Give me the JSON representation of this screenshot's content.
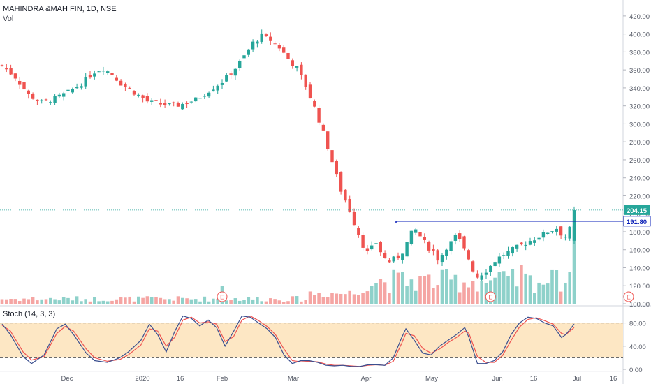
{
  "header": {
    "symbol": "MAHINDRA &MAH FIN, 1D, NSE",
    "volume_label": "Vol"
  },
  "stoch_label": "Stoch (14, 3, 3)",
  "earnings_marker": "E",
  "colors": {
    "up": "#26a69a",
    "down": "#ef5350",
    "up_vol": "#8ed1ca",
    "down_vol": "#f5a5a3",
    "level_line": "#0a1fb8",
    "last_price_line": "#26a69a",
    "k_line": "#3b4f8f",
    "d_line": "#ef5350",
    "band_fill": "#fde7c4",
    "axis_text": "#555a66"
  },
  "chart_data": {
    "type": "candlestick",
    "title": "MAHINDRA &MAH FIN, 1D, NSE",
    "price_axis": {
      "range": [
        100,
        430
      ],
      "ticks": [
        "420.00",
        "400.00",
        "380.00",
        "360.00",
        "340.00",
        "320.00",
        "300.00",
        "280.00",
        "260.00",
        "240.00",
        "220.00",
        "200.00",
        "180.00",
        "160.00",
        "140.00",
        "120.00",
        "100.00"
      ]
    },
    "x_axis_labels": [
      "Dec",
      "2020",
      "16",
      "Feb",
      "Mar",
      "Apr",
      "May",
      "Jun",
      "16",
      "Jul",
      "16"
    ],
    "last_price_label": "204.15",
    "level_label": "191.80",
    "level_value": 191.8,
    "close_path": [
      [
        0,
        365
      ],
      [
        3,
        352
      ],
      [
        6,
        332
      ],
      [
        9,
        324
      ],
      [
        12,
        328
      ],
      [
        15,
        335
      ],
      [
        18,
        345
      ],
      [
        21,
        358
      ],
      [
        23,
        362
      ],
      [
        25,
        355
      ],
      [
        27,
        345
      ],
      [
        30,
        335
      ],
      [
        33,
        325
      ],
      [
        36,
        322
      ],
      [
        39,
        320
      ],
      [
        41,
        322
      ],
      [
        44,
        327
      ],
      [
        47,
        337
      ],
      [
        50,
        347
      ],
      [
        53,
        362
      ],
      [
        55,
        375
      ],
      [
        57,
        390
      ],
      [
        59,
        398
      ],
      [
        61,
        393
      ],
      [
        63,
        385
      ],
      [
        65,
        372
      ],
      [
        67,
        362
      ],
      [
        69,
        342
      ],
      [
        71,
        318
      ],
      [
        73,
        290
      ],
      [
        75,
        258
      ],
      [
        77,
        226
      ],
      [
        79,
        204
      ],
      [
        80,
        190
      ],
      [
        81,
        178
      ],
      [
        82,
        165
      ],
      [
        83,
        157
      ],
      [
        84,
        162
      ],
      [
        85,
        168
      ],
      [
        86,
        158
      ],
      [
        87,
        150
      ],
      [
        88,
        147
      ],
      [
        90,
        152
      ],
      [
        91,
        158
      ],
      [
        92,
        168
      ],
      [
        93,
        178
      ],
      [
        94,
        182
      ],
      [
        95,
        175
      ],
      [
        96,
        168
      ],
      [
        97,
        162
      ],
      [
        98,
        158
      ],
      [
        99,
        150
      ],
      [
        100,
        155
      ],
      [
        101,
        163
      ],
      [
        102,
        168
      ],
      [
        103,
        175
      ],
      [
        104,
        170
      ],
      [
        105,
        160
      ],
      [
        106,
        150
      ],
      [
        107,
        138
      ],
      [
        108,
        130
      ],
      [
        110,
        137
      ],
      [
        111,
        142
      ],
      [
        112,
        148
      ],
      [
        114,
        155
      ],
      [
        116,
        160
      ],
      [
        118,
        165
      ],
      [
        120,
        170
      ],
      [
        122,
        175
      ],
      [
        124,
        180
      ],
      [
        126,
        184
      ],
      [
        127,
        178
      ],
      [
        128,
        175
      ],
      [
        129,
        183
      ],
      [
        130,
        204
      ]
    ],
    "earnings_days": [
      50,
      111
    ],
    "stoch": {
      "levels": [
        80,
        20
      ],
      "ticks": [
        "80.00",
        "40.00",
        "0.00"
      ],
      "k_path": [
        [
          0,
          78
        ],
        [
          2,
          60
        ],
        [
          5,
          22
        ],
        [
          7,
          10
        ],
        [
          10,
          25
        ],
        [
          13,
          70
        ],
        [
          15,
          78
        ],
        [
          17,
          60
        ],
        [
          20,
          28
        ],
        [
          22,
          15
        ],
        [
          25,
          12
        ],
        [
          28,
          20
        ],
        [
          30,
          30
        ],
        [
          33,
          50
        ],
        [
          35,
          78
        ],
        [
          37,
          60
        ],
        [
          39,
          30
        ],
        [
          41,
          65
        ],
        [
          43,
          92
        ],
        [
          45,
          88
        ],
        [
          47,
          75
        ],
        [
          49,
          85
        ],
        [
          51,
          72
        ],
        [
          53,
          40
        ],
        [
          55,
          65
        ],
        [
          57,
          92
        ],
        [
          59,
          90
        ],
        [
          61,
          80
        ],
        [
          63,
          70
        ],
        [
          65,
          55
        ],
        [
          67,
          25
        ],
        [
          69,
          10
        ],
        [
          71,
          15
        ],
        [
          73,
          15
        ],
        [
          75,
          12
        ],
        [
          77,
          7
        ],
        [
          79,
          6
        ],
        [
          81,
          7
        ],
        [
          83,
          5
        ],
        [
          85,
          5
        ],
        [
          87,
          8
        ],
        [
          89,
          8
        ],
        [
          91,
          7
        ],
        [
          93,
          20
        ],
        [
          95,
          55
        ],
        [
          96,
          70
        ],
        [
          98,
          50
        ],
        [
          100,
          28
        ],
        [
          102,
          25
        ],
        [
          104,
          40
        ],
        [
          106,
          50
        ],
        [
          108,
          60
        ],
        [
          110,
          72
        ],
        [
          111,
          55
        ],
        [
          113,
          10
        ],
        [
          115,
          10
        ],
        [
          117,
          15
        ],
        [
          119,
          30
        ],
        [
          121,
          60
        ],
        [
          123,
          80
        ],
        [
          125,
          90
        ],
        [
          127,
          88
        ],
        [
          129,
          80
        ],
        [
          131,
          75
        ],
        [
          133,
          55
        ],
        [
          134,
          60
        ],
        [
          136,
          78
        ]
      ],
      "d_path": [
        [
          0,
          76
        ],
        [
          2,
          66
        ],
        [
          5,
          30
        ],
        [
          7,
          16
        ],
        [
          10,
          22
        ],
        [
          13,
          62
        ],
        [
          15,
          74
        ],
        [
          17,
          66
        ],
        [
          20,
          35
        ],
        [
          22,
          20
        ],
        [
          25,
          14
        ],
        [
          28,
          17
        ],
        [
          30,
          25
        ],
        [
          33,
          42
        ],
        [
          35,
          70
        ],
        [
          37,
          66
        ],
        [
          39,
          40
        ],
        [
          41,
          55
        ],
        [
          43,
          85
        ],
        [
          45,
          90
        ],
        [
          47,
          80
        ],
        [
          49,
          82
        ],
        [
          51,
          78
        ],
        [
          53,
          48
        ],
        [
          55,
          56
        ],
        [
          57,
          85
        ],
        [
          59,
          92
        ],
        [
          61,
          84
        ],
        [
          63,
          74
        ],
        [
          65,
          60
        ],
        [
          67,
          35
        ],
        [
          69,
          15
        ],
        [
          71,
          13
        ],
        [
          73,
          14
        ],
        [
          75,
          13
        ],
        [
          77,
          9
        ],
        [
          79,
          7
        ],
        [
          81,
          7
        ],
        [
          83,
          6
        ],
        [
          85,
          5
        ],
        [
          87,
          7
        ],
        [
          89,
          8
        ],
        [
          91,
          7
        ],
        [
          93,
          14
        ],
        [
          95,
          45
        ],
        [
          96,
          62
        ],
        [
          98,
          58
        ],
        [
          100,
          36
        ],
        [
          102,
          28
        ],
        [
          104,
          35
        ],
        [
          106,
          46
        ],
        [
          108,
          55
        ],
        [
          110,
          66
        ],
        [
          111,
          62
        ],
        [
          113,
          22
        ],
        [
          115,
          12
        ],
        [
          117,
          12
        ],
        [
          119,
          24
        ],
        [
          121,
          50
        ],
        [
          123,
          73
        ],
        [
          125,
          86
        ],
        [
          127,
          89
        ],
        [
          129,
          84
        ],
        [
          131,
          78
        ],
        [
          133,
          62
        ],
        [
          134,
          60
        ],
        [
          136,
          72
        ]
      ]
    }
  }
}
